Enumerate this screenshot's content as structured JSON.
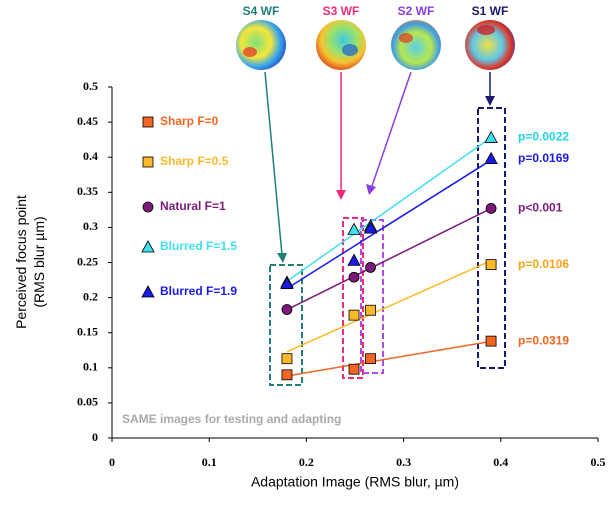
{
  "chart_data": {
    "type": "scatter",
    "xlabel": "Adaptation Image (RMS blur, µm)",
    "ylabel": [
      "Perceived focus point",
      "(RMS blur µm)"
    ],
    "xlim": [
      0,
      0.5
    ],
    "xticks": [
      0,
      0.1,
      0.2,
      0.3,
      0.4,
      0.5
    ],
    "ylim": [
      0,
      0.5
    ],
    "yticks": [
      0,
      0.05,
      0.1,
      0.15,
      0.2,
      0.25,
      0.3,
      0.35,
      0.4,
      0.45,
      0.5
    ],
    "x": [
      0.18,
      0.249,
      0.266,
      0.39
    ],
    "legend": "upper left",
    "trend_lines": true,
    "note": "SAME images for testing and adapting",
    "wavefronts": [
      {
        "label": "S4 WF",
        "color": "#1f7f78"
      },
      {
        "label": "S3 WF",
        "color": "#ee2a7b"
      },
      {
        "label": "S2 WF",
        "color": "#8a3ee0"
      },
      {
        "label": "S1 WF",
        "color": "#1a1a6e"
      }
    ],
    "series": [
      {
        "name": "Sharp F=0",
        "color": "#f26522",
        "marker": "square",
        "values": [
          0.09,
          0.098,
          0.113,
          0.138
        ],
        "p_label": "p=0.0319",
        "p_color": "#f26522"
      },
      {
        "name": "Sharp F=0.5",
        "color": "#fbb829",
        "marker": "square",
        "values": [
          0.113,
          0.175,
          0.182,
          0.247
        ],
        "p_label": "p=0.0106",
        "p_color": "#f7a21b"
      },
      {
        "name": "Natural F=1",
        "color": "#7b1a7b",
        "marker": "circle",
        "values": [
          0.183,
          0.229,
          0.243,
          0.327
        ],
        "p_label": "p<0.001",
        "p_color": "#7b1a7b"
      },
      {
        "name": "Blurred F=1.5",
        "color": "#3fe0f0",
        "marker": "triangle",
        "values": [
          0.222,
          0.297,
          0.302,
          0.428
        ],
        "p_label": "p=0.0022",
        "p_color": "#22d3e6"
      },
      {
        "name": "Blurred F=1.9",
        "color": "#1a1ae6",
        "marker": "triangle",
        "values": [
          0.22,
          0.253,
          0.299,
          0.398
        ],
        "p_label": "p=0.0169",
        "p_color": "#1a1ae6"
      }
    ]
  }
}
